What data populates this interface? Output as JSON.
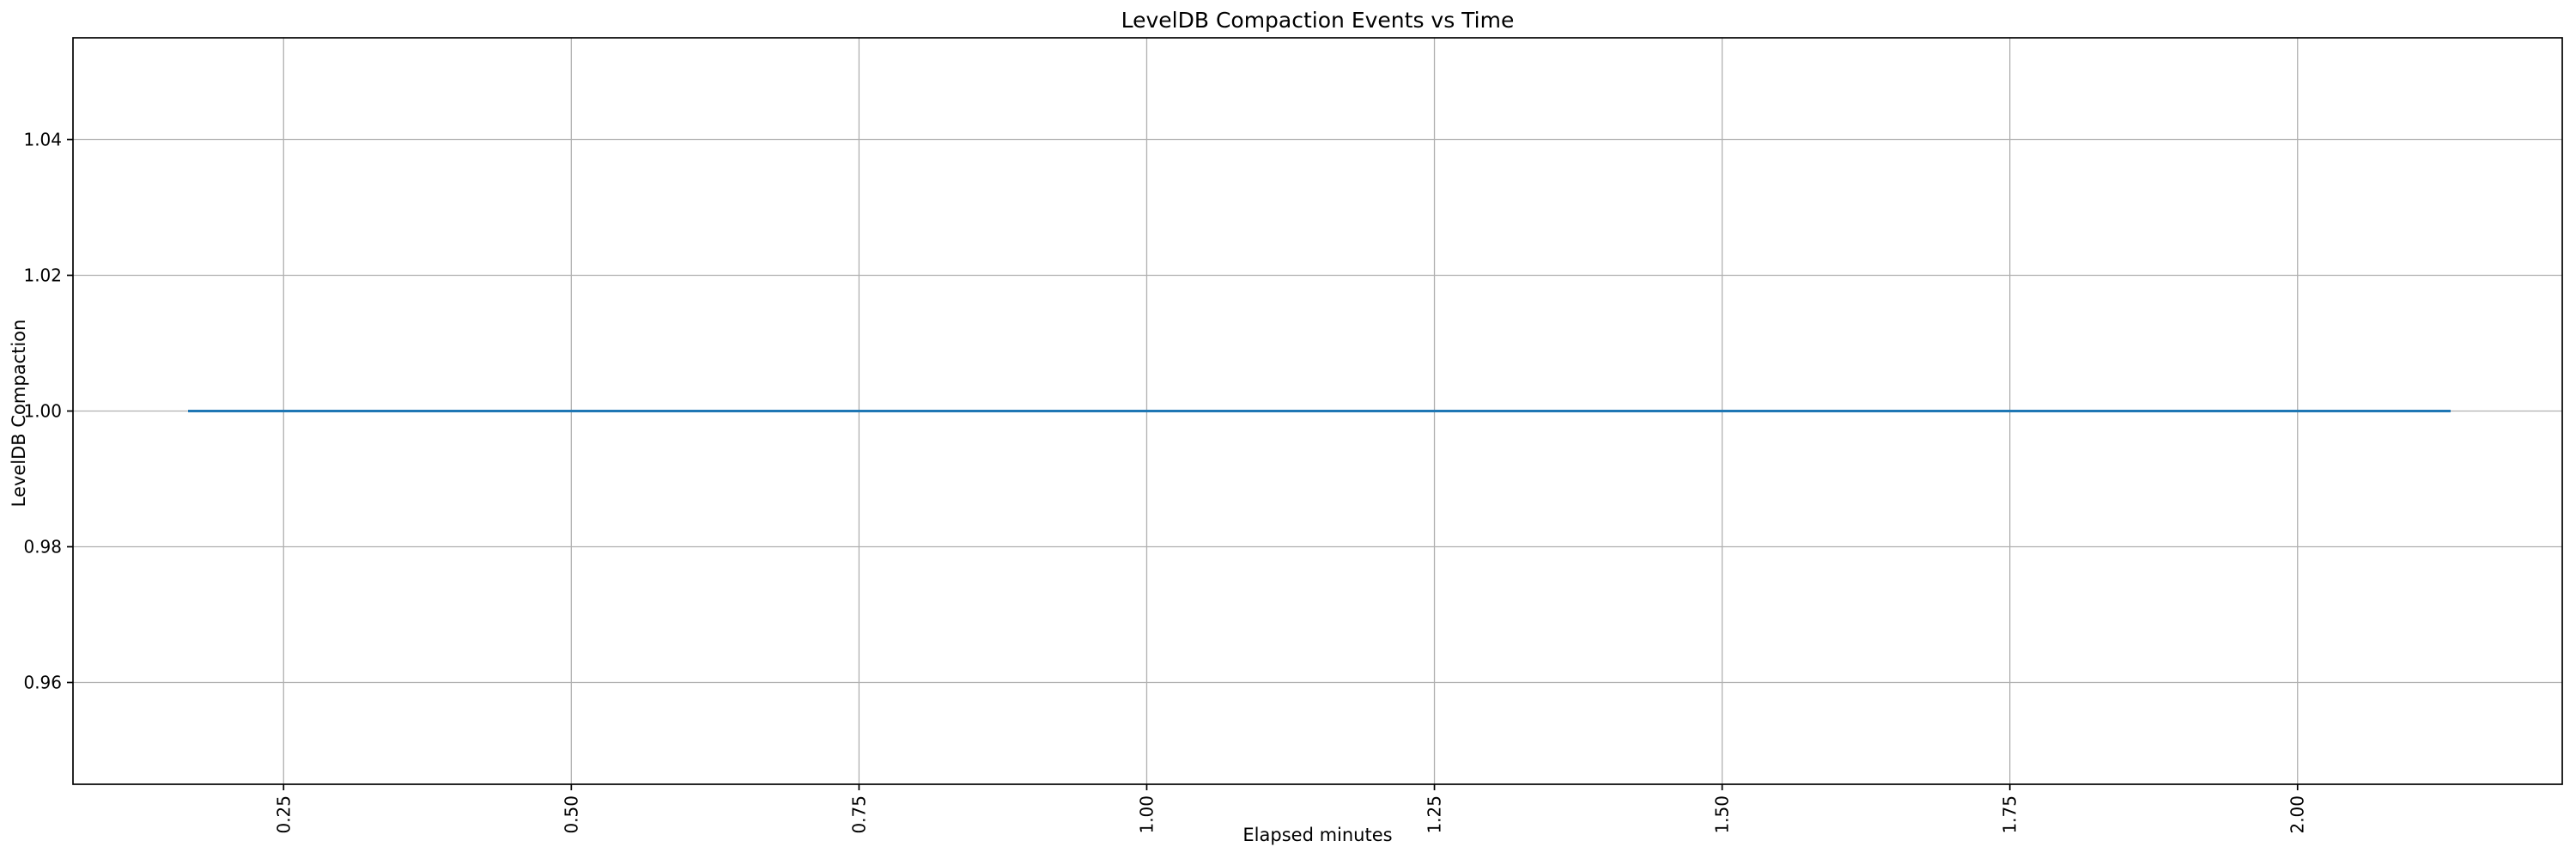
{
  "figure": {
    "background": "#ffffff"
  },
  "chart_data": {
    "type": "line",
    "title": "LevelDB Compaction Events vs Time",
    "xlabel": "Elapsed minutes",
    "ylabel": "LevelDB Compaction",
    "x": [
      0.167,
      2.133
    ],
    "series": [
      {
        "name": "LevelDB Compaction",
        "color": "#1f77b4",
        "values": [
          1.0,
          1.0
        ]
      }
    ],
    "xlim": [
      0.067,
      2.23
    ],
    "ylim": [
      0.945,
      1.055
    ],
    "xticks": [
      0.25,
      0.5,
      0.75,
      1.0,
      1.25,
      1.5,
      1.75,
      2.0
    ],
    "xtick_labels": [
      "0.25",
      "0.50",
      "0.75",
      "1.00",
      "1.25",
      "1.50",
      "1.75",
      "2.00"
    ],
    "yticks": [
      0.96,
      0.98,
      1.0,
      1.02,
      1.04
    ],
    "ytick_labels": [
      "0.96",
      "0.98",
      "1.00",
      "1.02",
      "1.04"
    ],
    "xtick_rotation_deg": 90,
    "grid": true,
    "grid_color": "#b0b0b0",
    "spine_color": "#000000",
    "tick_color": "#000000",
    "text_color": "#000000",
    "legend": "none"
  }
}
